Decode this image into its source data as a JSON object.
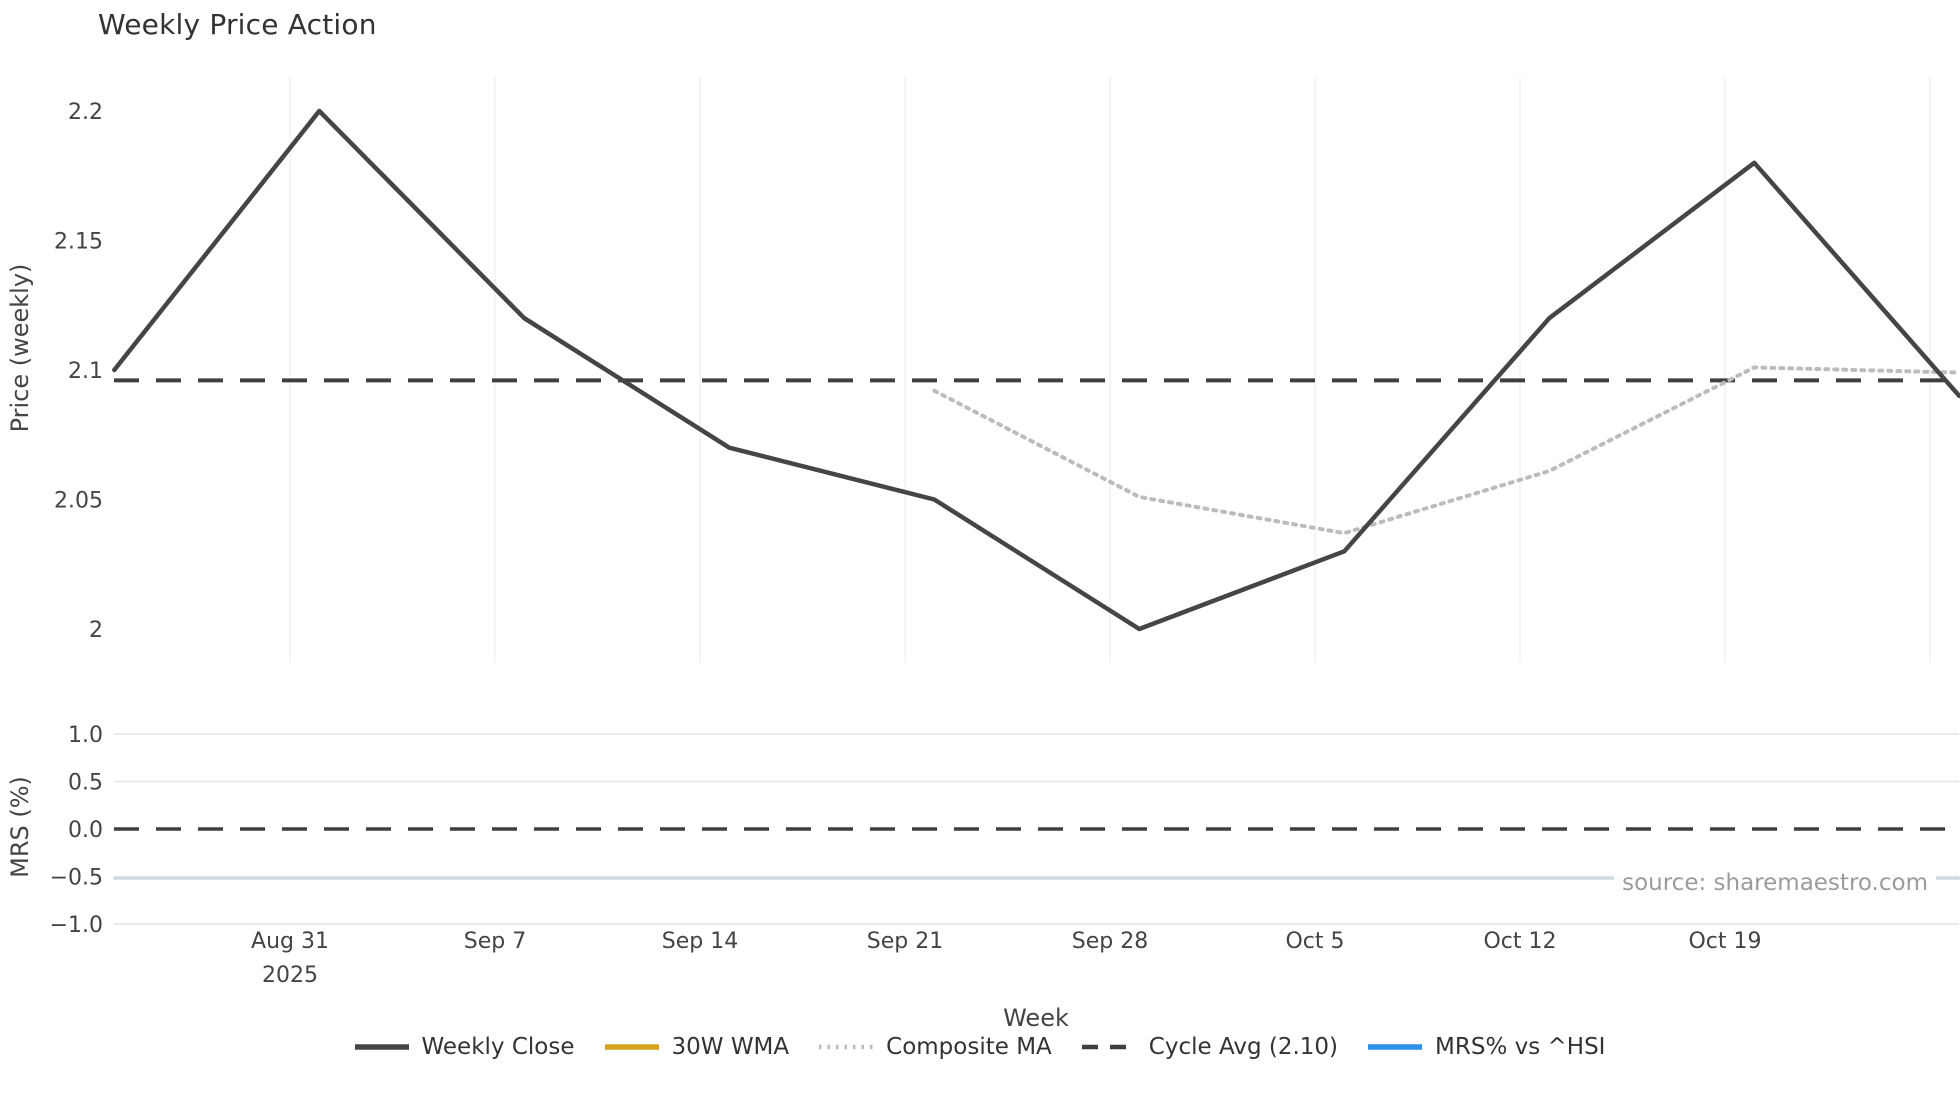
{
  "title": "Weekly Price Action",
  "source_note": "source: sharemaestro.com",
  "axis": {
    "price_label": "Price (weekly)",
    "mrs_label": "MRS (%)",
    "x_label": "Week"
  },
  "colors": {
    "weekly_close": "#454545",
    "wma_30": "#d5a21e",
    "composite_ma": "#bcbcbc",
    "cycle_avg": "#3f3f3f",
    "mrs": "#2d8fe8",
    "mrs_plot": "#ccd6de",
    "grid_vertical": "#eef2f8",
    "grid_horizontal": "#e4e4e4",
    "text": "#444444",
    "title_text": "#333333",
    "source_text": "#9b9b9b"
  },
  "legend": [
    {
      "label": "Weekly Close",
      "style": "solid",
      "color_key": "weekly_close"
    },
    {
      "label": "30W WMA",
      "style": "solid",
      "color_key": "wma_30"
    },
    {
      "label": "Composite MA",
      "style": "dotted",
      "color_key": "composite_ma"
    },
    {
      "label": "Cycle Avg (2.10)",
      "style": "dashed",
      "color_key": "cycle_avg"
    },
    {
      "label": "MRS% vs ^HSI",
      "style": "solid",
      "color_key": "mrs"
    }
  ],
  "chart_data": {
    "type": "line",
    "title": "Weekly Price Action",
    "xlabel": "Week",
    "x_tick_days": [
      0,
      7,
      14,
      21,
      28,
      35,
      42,
      49
    ],
    "x_grid_days": [
      0,
      7,
      14,
      21,
      28,
      35,
      42,
      49,
      56
    ],
    "x_tick_labels": [
      [
        "Aug 31",
        "2025"
      ],
      [
        "Sep 7"
      ],
      [
        "Sep 14"
      ],
      [
        "Sep 21"
      ],
      [
        "Sep 28"
      ],
      [
        "Oct 5"
      ],
      [
        "Oct 12"
      ],
      [
        "Oct 19"
      ]
    ],
    "panels": [
      {
        "name": "price",
        "ylabel": "Price (weekly)",
        "ylim": [
          1.987,
          2.213
        ],
        "grid": "vertical",
        "yticks": [
          {
            "v": 2.2,
            "label": "2.2"
          },
          {
            "v": 2.15,
            "label": "2.15"
          },
          {
            "v": 2.1,
            "label": "2.1"
          },
          {
            "v": 2.05,
            "label": "2.05"
          },
          {
            "v": 2.0,
            "label": "2"
          }
        ],
        "series": [
          {
            "name": "Weekly Close",
            "style": "solid",
            "width": 4.5,
            "color_key": "weekly_close",
            "days": [
              -6,
              1,
              8,
              15,
              22,
              29,
              36,
              43,
              50,
              57
            ],
            "values": [
              2.1,
              2.2,
              2.12,
              2.07,
              2.05,
              2.0,
              2.03,
              2.12,
              2.18,
              2.09
            ]
          },
          {
            "name": "30W WMA",
            "style": "solid",
            "width": 4,
            "color_key": "wma_30",
            "days": [],
            "values": []
          },
          {
            "name": "Composite MA",
            "style": "dotted",
            "width": 4,
            "color_key": "composite_ma",
            "days": [
              22,
              29,
              36,
              43,
              50,
              57
            ],
            "values": [
              2.092,
              2.051,
              2.037,
              2.061,
              2.101,
              2.099
            ]
          },
          {
            "name": "Cycle Avg (2.10)",
            "style": "dashed",
            "width": 4,
            "color_key": "cycle_avg",
            "constant": 2.096
          }
        ]
      },
      {
        "name": "mrs",
        "ylabel": "MRS (%)",
        "ylim": [
          -1.2,
          1.2
        ],
        "grid": "horizontal",
        "yticks": [
          {
            "v": 1.0,
            "label": "1.0"
          },
          {
            "v": 0.5,
            "label": "0.5"
          },
          {
            "v": 0.0,
            "label": "0.0"
          },
          {
            "v": -0.5,
            "label": "−0.5"
          },
          {
            "v": -1.0,
            "label": "−1.0"
          }
        ],
        "series": [
          {
            "name": "MRS% vs ^HSI",
            "style": "solid",
            "width": 2.5,
            "color_key": "mrs_plot",
            "days": [
              -6,
              1,
              8,
              15,
              22,
              29,
              36,
              43,
              50,
              57
            ],
            "values": [
              -0.52,
              -0.52,
              -0.52,
              -0.52,
              -0.52,
              -0.52,
              -0.52,
              -0.52,
              -0.52,
              -0.52
            ]
          },
          {
            "name": "Zero Line",
            "style": "dashed",
            "width": 3.5,
            "color_key": "cycle_avg",
            "constant": 0.0
          }
        ]
      }
    ]
  }
}
